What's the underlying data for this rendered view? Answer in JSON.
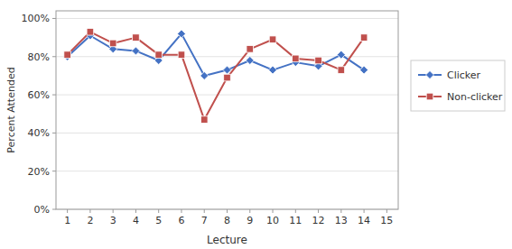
{
  "chart_data": {
    "type": "line",
    "xlabel": "Lecture",
    "ylabel": "Percent Attended",
    "x": [
      1,
      2,
      3,
      4,
      5,
      6,
      7,
      8,
      9,
      10,
      11,
      12,
      13,
      14
    ],
    "series": [
      {
        "name": "Clicker",
        "color": "#4472C4",
        "marker": "diamond",
        "values": [
          0.8,
          0.91,
          0.84,
          0.83,
          0.78,
          0.92,
          0.7,
          0.73,
          0.78,
          0.73,
          0.77,
          0.75,
          0.81,
          0.73
        ]
      },
      {
        "name": "Non-clicker",
        "color": "#C0504D",
        "marker": "square",
        "values": [
          0.81,
          0.93,
          0.87,
          0.9,
          0.81,
          0.81,
          0.47,
          0.69,
          0.84,
          0.89,
          0.79,
          0.78,
          0.73,
          0.9
        ]
      }
    ],
    "xlim": [
      0.5,
      15.5
    ],
    "xticks": [
      1,
      2,
      3,
      4,
      5,
      6,
      7,
      8,
      9,
      10,
      11,
      12,
      13,
      14,
      15
    ],
    "ylim": [
      0.0,
      1.04
    ],
    "yticks": [
      {
        "value": 0.0,
        "label": "0%"
      },
      {
        "value": 0.2,
        "label": "20%"
      },
      {
        "value": 0.4,
        "label": "40%"
      },
      {
        "value": 0.6,
        "label": "60%"
      },
      {
        "value": 0.8,
        "label": "80%"
      },
      {
        "value": 1.0,
        "label": "100%"
      }
    ],
    "grid": true,
    "legend": "right"
  }
}
